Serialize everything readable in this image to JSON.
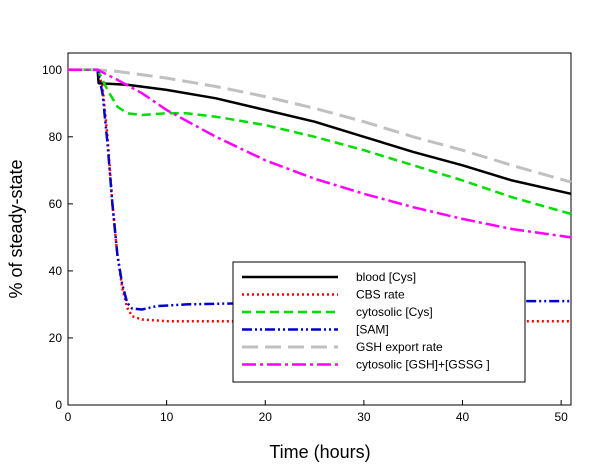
{
  "chart_data": {
    "type": "line",
    "xlabel": "Time (hours)",
    "ylabel": "% of steady-state",
    "xlim": [
      0,
      51
    ],
    "ylim": [
      0,
      105
    ],
    "xticks": [
      0,
      10,
      20,
      30,
      40,
      50
    ],
    "yticks": [
      0,
      20,
      40,
      60,
      80,
      100
    ],
    "grid": false,
    "legend_position": "lower-center",
    "series": [
      {
        "name": "blood [Cys]",
        "color": "#000000",
        "style": "solid",
        "points": [
          [
            0,
            100
          ],
          [
            3,
            100
          ],
          [
            3.1,
            96
          ],
          [
            6,
            95.5
          ],
          [
            10,
            94
          ],
          [
            15,
            91.5
          ],
          [
            20,
            88
          ],
          [
            25,
            84.5
          ],
          [
            30,
            80
          ],
          [
            35,
            75.5
          ],
          [
            40,
            71.5
          ],
          [
            45,
            67
          ],
          [
            51,
            63
          ]
        ]
      },
      {
        "name": "CBS rate",
        "color": "#ff0000",
        "style": "dotted",
        "points": [
          [
            0,
            100
          ],
          [
            3,
            100
          ],
          [
            3.5,
            95
          ],
          [
            4,
            80
          ],
          [
            4.5,
            60
          ],
          [
            5,
            45
          ],
          [
            5.5,
            35
          ],
          [
            6,
            29
          ],
          [
            6.5,
            26.5
          ],
          [
            7.5,
            25.5
          ],
          [
            10,
            25
          ],
          [
            20,
            25
          ],
          [
            30,
            25
          ],
          [
            40,
            25
          ],
          [
            51,
            25
          ]
        ]
      },
      {
        "name": "cytosolic [Cys]",
        "color": "#00dd00",
        "style": "dashed",
        "points": [
          [
            0,
            100
          ],
          [
            3,
            100
          ],
          [
            4,
            94
          ],
          [
            5,
            89
          ],
          [
            6,
            87
          ],
          [
            7.5,
            86.5
          ],
          [
            10,
            87
          ],
          [
            12,
            87
          ],
          [
            15,
            86
          ],
          [
            20,
            83.5
          ],
          [
            25,
            80
          ],
          [
            30,
            76
          ],
          [
            35,
            71.5
          ],
          [
            40,
            67
          ],
          [
            45,
            62
          ],
          [
            51,
            57
          ]
        ]
      },
      {
        "name": "[SAM]",
        "color": "#0000cc",
        "style": "dashdotdot",
        "points": [
          [
            0,
            100
          ],
          [
            3,
            100
          ],
          [
            3.5,
            93
          ],
          [
            4,
            78
          ],
          [
            4.5,
            60
          ],
          [
            5,
            45
          ],
          [
            5.5,
            36
          ],
          [
            6,
            30.5
          ],
          [
            6.5,
            28.8
          ],
          [
            7.5,
            28.5
          ],
          [
            9,
            29.5
          ],
          [
            12,
            30
          ],
          [
            20,
            30.5
          ],
          [
            30,
            31
          ],
          [
            40,
            31
          ],
          [
            51,
            31
          ]
        ]
      },
      {
        "name": "GSH export rate",
        "color": "#c0c0c0",
        "style": "longdash",
        "points": [
          [
            0,
            100
          ],
          [
            3,
            100
          ],
          [
            5,
            99.5
          ],
          [
            10,
            97.5
          ],
          [
            15,
            95
          ],
          [
            20,
            92
          ],
          [
            25,
            88.5
          ],
          [
            30,
            84.5
          ],
          [
            35,
            80
          ],
          [
            40,
            76
          ],
          [
            45,
            71.5
          ],
          [
            51,
            66.5
          ]
        ]
      },
      {
        "name": " cytosolic [GSH]+[GSSG ]",
        "color": "#ff00ff",
        "style": "dashdot",
        "points": [
          [
            0,
            100
          ],
          [
            3,
            100
          ],
          [
            5,
            97
          ],
          [
            7.5,
            93
          ],
          [
            10,
            88
          ],
          [
            15,
            80
          ],
          [
            20,
            73
          ],
          [
            25,
            67.5
          ],
          [
            30,
            63
          ],
          [
            35,
            59
          ],
          [
            40,
            55.5
          ],
          [
            45,
            52.5
          ],
          [
            51,
            50
          ]
        ]
      }
    ]
  }
}
